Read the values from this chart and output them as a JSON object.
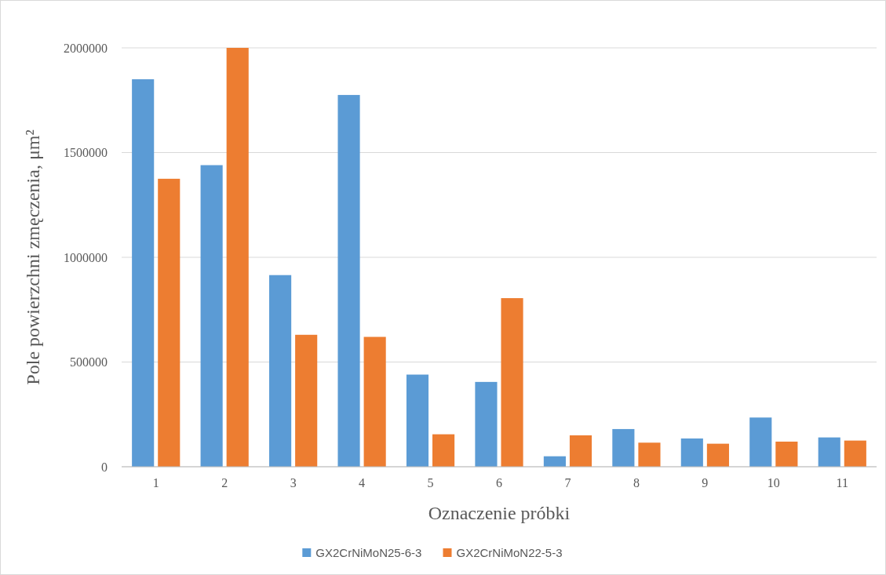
{
  "chart_data": {
    "type": "bar",
    "xlabel": "Oznaczenie próbki",
    "ylabel": "Pole powierzchni zmęczenia, μm²",
    "categories": [
      "1",
      "2",
      "3",
      "4",
      "5",
      "6",
      "7",
      "8",
      "9",
      "10",
      "11"
    ],
    "series": [
      {
        "name": "GX2CrNiMoN25-6-3",
        "color": "#5b9bd5",
        "values": [
          1850000,
          1440000,
          915000,
          1775000,
          440000,
          405000,
          50000,
          180000,
          135000,
          235000,
          140000
        ]
      },
      {
        "name": "GX2CrNiMoN22-5-3",
        "color": "#ed7d31",
        "values": [
          1375000,
          2000000,
          630000,
          620000,
          155000,
          805000,
          150000,
          115000,
          110000,
          120000,
          125000
        ]
      }
    ],
    "ylim": [
      0,
      2000000
    ],
    "yticks": [
      0,
      500000,
      1000000,
      1500000,
      2000000
    ],
    "grid": "y",
    "legend": "bottom"
  }
}
